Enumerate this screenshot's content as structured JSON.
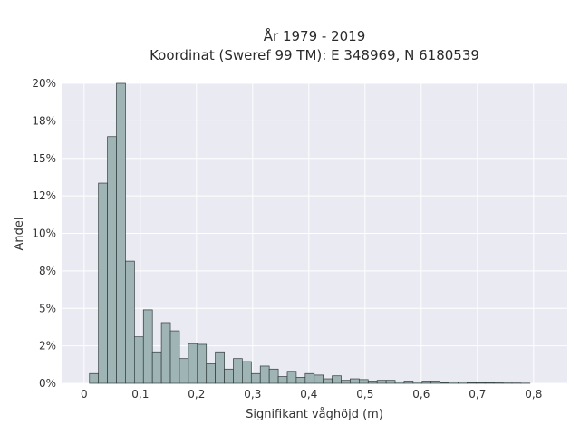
{
  "chart_data": {
    "type": "bar",
    "title_line1": "År 1979 - 2019",
    "title_line2": "Koordinat (Sweref 99 TM): E 348969, N 6180539",
    "xlabel": "Signifikant våghöjd (m)",
    "ylabel": "Andel",
    "xlim": [
      -0.04,
      0.86
    ],
    "ylim": [
      0,
      0.2
    ],
    "grid": true,
    "x_ticks": [
      {
        "value": 0.0,
        "label": "0"
      },
      {
        "value": 0.1,
        "label": "0,1"
      },
      {
        "value": 0.2,
        "label": "0,2"
      },
      {
        "value": 0.3,
        "label": "0,3"
      },
      {
        "value": 0.4,
        "label": "0,4"
      },
      {
        "value": 0.5,
        "label": "0,5"
      },
      {
        "value": 0.6,
        "label": "0,6"
      },
      {
        "value": 0.7,
        "label": "0,7"
      },
      {
        "value": 0.8,
        "label": "0,8"
      }
    ],
    "y_ticks": [
      {
        "value": 0.0,
        "label": "0%"
      },
      {
        "value": 0.025,
        "label": "2%"
      },
      {
        "value": 0.05,
        "label": "5%"
      },
      {
        "value": 0.075,
        "label": "8%"
      },
      {
        "value": 0.1,
        "label": "10%"
      },
      {
        "value": 0.125,
        "label": "12%"
      },
      {
        "value": 0.15,
        "label": "15%"
      },
      {
        "value": 0.175,
        "label": "18%"
      },
      {
        "value": 0.2,
        "label": "20%"
      }
    ],
    "bin_edges": [
      0.0096,
      0.0256,
      0.0416,
      0.0576,
      0.0736,
      0.0896,
      0.1056,
      0.1216,
      0.1376,
      0.1536,
      0.1696,
      0.1856,
      0.2016,
      0.2176,
      0.2336,
      0.2496,
      0.2656,
      0.2816,
      0.2976,
      0.3136,
      0.3296,
      0.3456,
      0.3616,
      0.3776,
      0.3936,
      0.4096,
      0.4256,
      0.4416,
      0.4576,
      0.4736,
      0.4896,
      0.5056,
      0.5216,
      0.5376,
      0.5536,
      0.5696,
      0.5856,
      0.6016,
      0.6176,
      0.6336,
      0.6496,
      0.6656,
      0.6816,
      0.6976,
      0.7136,
      0.7296,
      0.7456,
      0.7616,
      0.7776,
      0.7936
    ],
    "values": [
      0.0065,
      0.1335,
      0.1645,
      0.2,
      0.0815,
      0.031,
      0.049,
      0.021,
      0.0405,
      0.035,
      0.0165,
      0.0265,
      0.026,
      0.013,
      0.021,
      0.0095,
      0.0165,
      0.0145,
      0.0065,
      0.0115,
      0.0095,
      0.0045,
      0.008,
      0.004,
      0.0065,
      0.0055,
      0.003,
      0.005,
      0.002,
      0.003,
      0.0025,
      0.0015,
      0.002,
      0.002,
      0.001,
      0.0015,
      0.001,
      0.0015,
      0.0015,
      0.0005,
      0.001,
      0.001,
      0.0005,
      0.0005,
      0.0005,
      0.0003,
      0.0002,
      0.0002,
      0.0001
    ]
  }
}
